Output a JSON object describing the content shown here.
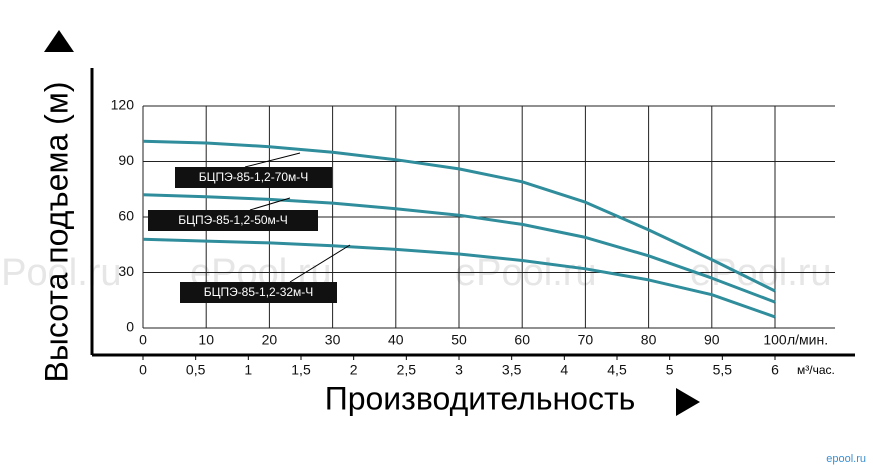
{
  "chart_data": {
    "type": "line",
    "y_label": "Высота подъема (м)",
    "x_label": "Производительность",
    "x_unit": "л/мин.",
    "x2_unit": "м³/час.",
    "watermark": "ePool.ru",
    "logo": "epool.ru",
    "xlim": [
      0,
      100
    ],
    "xticks": [
      0,
      10,
      20,
      30,
      40,
      50,
      60,
      70,
      80,
      90,
      100
    ],
    "x2lim": [
      0,
      6
    ],
    "x2ticks": [
      0,
      {
        "value": 0.5,
        "label": "0,5"
      },
      1,
      {
        "value": 1.5,
        "label": "1,5"
      },
      2,
      {
        "value": 2.5,
        "label": "2,5"
      },
      3,
      {
        "value": 3.5,
        "label": "3,5"
      },
      4,
      {
        "value": 4.5,
        "label": "4,5"
      },
      5,
      {
        "value": 5.5,
        "label": "5,5"
      },
      6
    ],
    "ylim": [
      0,
      120
    ],
    "yticks": [
      0,
      30,
      60,
      90,
      120
    ],
    "grid": true,
    "x": [
      0,
      10,
      20,
      30,
      40,
      50,
      60,
      70,
      80,
      90,
      100
    ],
    "series": [
      {
        "name": "БЦПЭ-85-1,2-70м-Ч",
        "color": "#2f8d9c",
        "values": [
          101,
          100,
          98,
          95,
          91,
          86,
          79,
          68,
          53,
          37,
          20
        ]
      },
      {
        "name": "БЦПЭ-85-1,2-50м-Ч",
        "color": "#2f8d9c",
        "values": [
          72,
          71,
          69.5,
          67.5,
          64.5,
          61,
          56,
          49,
          39,
          27,
          14
        ]
      },
      {
        "name": "БЦПЭ-85-1,2-32м-Ч",
        "color": "#2f8d9c",
        "values": [
          48,
          47,
          46,
          44.5,
          42.5,
          40,
          36.5,
          32,
          26,
          18,
          6
        ]
      }
    ]
  }
}
